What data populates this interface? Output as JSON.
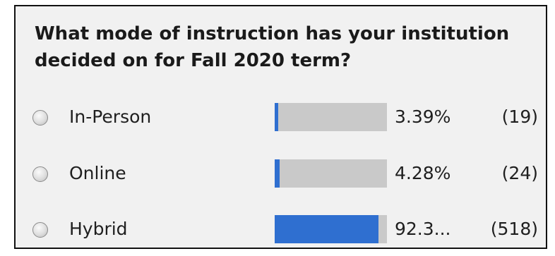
{
  "poll": {
    "question": "What mode of instruction has your institution decided on for Fall 2020 term?",
    "options": [
      {
        "label": "In-Person",
        "percent_text": "3.39%",
        "count_text": "(19)",
        "fraction": 0.0339
      },
      {
        "label": "Online",
        "percent_text": "4.28%",
        "count_text": "(24)",
        "fraction": 0.0428
      },
      {
        "label": "Hybrid",
        "percent_text": "92.3...",
        "count_text": "(518)",
        "fraction": 0.923
      }
    ]
  },
  "colors": {
    "bar_fill": "#2f6fd0",
    "bar_track": "#c9c9c9",
    "panel_background": "#f1f1f1"
  }
}
